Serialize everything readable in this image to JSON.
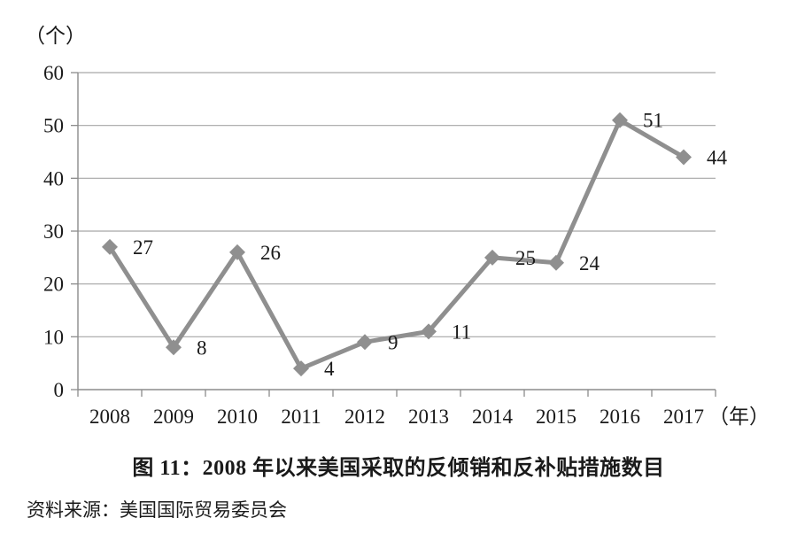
{
  "page": {
    "background": "#ffffff",
    "text_color": "#1a1a1a"
  },
  "chart_data": {
    "type": "line",
    "title": "图 11：2008 年以来美国采取的反倾销和反补贴措施数目",
    "source": "资料来源：美国国际贸易委员会",
    "y_unit_label": "（个）",
    "x_unit_label": "（年）",
    "categories": [
      "2008",
      "2009",
      "2010",
      "2011",
      "2012",
      "2013",
      "2014",
      "2015",
      "2016",
      "2017"
    ],
    "values": [
      27,
      8,
      26,
      4,
      9,
      11,
      25,
      24,
      51,
      44
    ],
    "series_name": "美国采取的反倾销和反补贴措施数目",
    "ylim": [
      0,
      60
    ],
    "yticks": [
      0,
      10,
      20,
      30,
      40,
      50,
      60
    ],
    "grid": true,
    "legend": "none",
    "marker": "diamond",
    "line_color": "#8f8f8f",
    "grid_color": "#a6a6a6",
    "axis_color": "#8c8c8c",
    "text_color": "#1a1a1a"
  }
}
